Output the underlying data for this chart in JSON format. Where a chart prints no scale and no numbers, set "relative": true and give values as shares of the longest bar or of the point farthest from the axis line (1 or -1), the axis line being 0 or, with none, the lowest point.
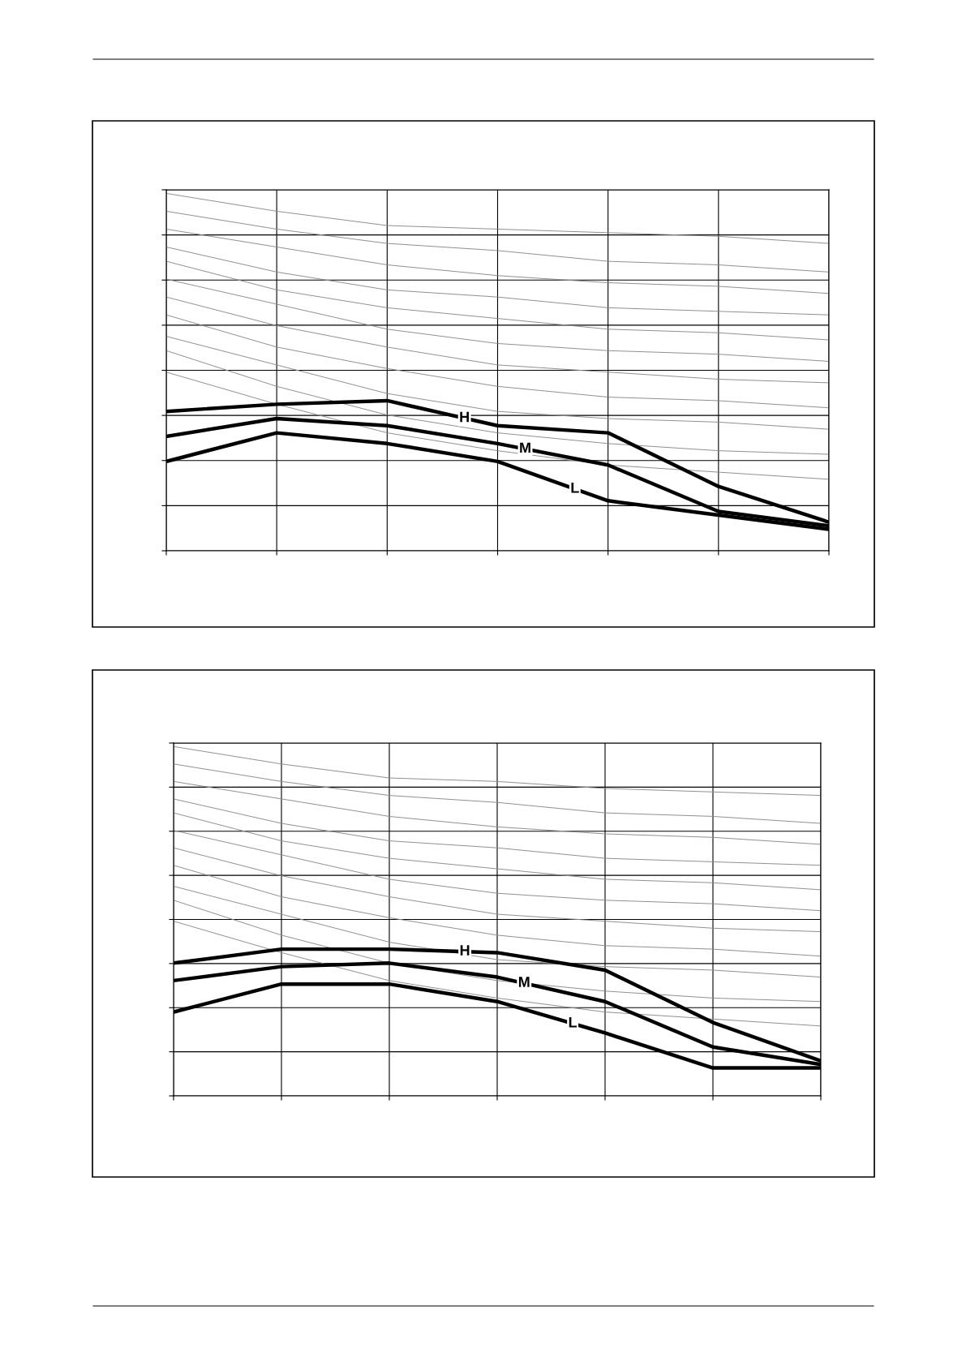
{
  "chart_data": [
    {
      "type": "line",
      "relative": true,
      "categories": [
        null,
        null,
        null,
        null,
        null,
        null,
        null
      ],
      "grid": true,
      "tick_labels": false,
      "legend": false,
      "marker": "none",
      "line_style": "solid",
      "series": [
        {
          "name": "H",
          "color": "#000000",
          "values": [
            0.39,
            0.41,
            0.42,
            0.35,
            0.33,
            0.18,
            0.08
          ]
        },
        {
          "name": "M",
          "color": "#000000",
          "values": [
            0.32,
            0.37,
            0.35,
            0.3,
            0.24,
            0.11,
            0.07
          ]
        },
        {
          "name": "L",
          "color": "#000000",
          "values": [
            0.25,
            0.33,
            0.3,
            0.25,
            0.14,
            0.1,
            0.06
          ]
        },
        {
          "color": "#8c8c8c",
          "values": [
            1.0,
            0.95,
            0.91,
            0.9,
            0.89,
            0.88,
            0.86
          ]
        },
        {
          "color": "#8c8c8c",
          "values": [
            0.95,
            0.9,
            0.86,
            0.84,
            0.81,
            0.8,
            0.78
          ]
        },
        {
          "color": "#8c8c8c",
          "values": [
            0.9,
            0.85,
            0.8,
            0.77,
            0.75,
            0.74,
            0.72
          ]
        },
        {
          "color": "#8c8c8c",
          "values": [
            0.85,
            0.78,
            0.73,
            0.71,
            0.68,
            0.67,
            0.66
          ]
        },
        {
          "color": "#8c8c8c",
          "values": [
            0.81,
            0.73,
            0.68,
            0.65,
            0.62,
            0.61,
            0.59
          ]
        },
        {
          "color": "#8c8c8c",
          "values": [
            0.76,
            0.69,
            0.62,
            0.58,
            0.56,
            0.55,
            0.53
          ]
        },
        {
          "color": "#8c8c8c",
          "values": [
            0.71,
            0.63,
            0.57,
            0.52,
            0.5,
            0.48,
            0.47
          ]
        },
        {
          "color": "#8c8c8c",
          "values": [
            0.66,
            0.57,
            0.51,
            0.46,
            0.43,
            0.42,
            0.4
          ]
        },
        {
          "color": "#8c8c8c",
          "values": [
            0.6,
            0.52,
            0.44,
            0.39,
            0.37,
            0.36,
            0.34
          ]
        },
        {
          "color": "#8c8c8c",
          "values": [
            0.56,
            0.46,
            0.38,
            0.33,
            0.3,
            0.28,
            0.27
          ]
        },
        {
          "color": "#8c8c8c",
          "values": [
            0.5,
            0.41,
            0.33,
            0.28,
            0.24,
            0.22,
            0.2
          ]
        }
      ]
    },
    {
      "type": "line",
      "relative": true,
      "categories": [
        null,
        null,
        null,
        null,
        null,
        null,
        null
      ],
      "grid": true,
      "tick_labels": false,
      "legend": false,
      "marker": "none",
      "line_style": "solid",
      "series": [
        {
          "name": "H",
          "color": "#000000",
          "values": [
            0.38,
            0.42,
            0.42,
            0.41,
            0.36,
            0.21,
            0.1
          ]
        },
        {
          "name": "M",
          "color": "#000000",
          "values": [
            0.33,
            0.37,
            0.38,
            0.34,
            0.27,
            0.14,
            0.09
          ]
        },
        {
          "name": "L",
          "color": "#000000",
          "values": [
            0.24,
            0.32,
            0.32,
            0.27,
            0.18,
            0.08,
            0.08
          ]
        },
        {
          "color": "#8c8c8c",
          "values": [
            1.0,
            0.95,
            0.91,
            0.9,
            0.88,
            0.87,
            0.86
          ]
        },
        {
          "color": "#8c8c8c",
          "values": [
            0.95,
            0.9,
            0.86,
            0.84,
            0.81,
            0.8,
            0.78
          ]
        },
        {
          "color": "#8c8c8c",
          "values": [
            0.9,
            0.85,
            0.8,
            0.77,
            0.75,
            0.74,
            0.72
          ]
        },
        {
          "color": "#8c8c8c",
          "values": [
            0.85,
            0.78,
            0.73,
            0.71,
            0.68,
            0.67,
            0.66
          ]
        },
        {
          "color": "#8c8c8c",
          "values": [
            0.81,
            0.73,
            0.68,
            0.65,
            0.62,
            0.61,
            0.59
          ]
        },
        {
          "color": "#8c8c8c",
          "values": [
            0.76,
            0.69,
            0.62,
            0.58,
            0.56,
            0.55,
            0.53
          ]
        },
        {
          "color": "#8c8c8c",
          "values": [
            0.71,
            0.63,
            0.57,
            0.52,
            0.5,
            0.48,
            0.47
          ]
        },
        {
          "color": "#8c8c8c",
          "values": [
            0.66,
            0.57,
            0.51,
            0.46,
            0.43,
            0.42,
            0.4
          ]
        },
        {
          "color": "#8c8c8c",
          "values": [
            0.6,
            0.52,
            0.44,
            0.39,
            0.37,
            0.36,
            0.34
          ]
        },
        {
          "color": "#8c8c8c",
          "values": [
            0.56,
            0.46,
            0.38,
            0.33,
            0.3,
            0.28,
            0.27
          ]
        },
        {
          "color": "#8c8c8c",
          "values": [
            0.5,
            0.41,
            0.33,
            0.28,
            0.24,
            0.22,
            0.2
          ]
        }
      ]
    }
  ]
}
